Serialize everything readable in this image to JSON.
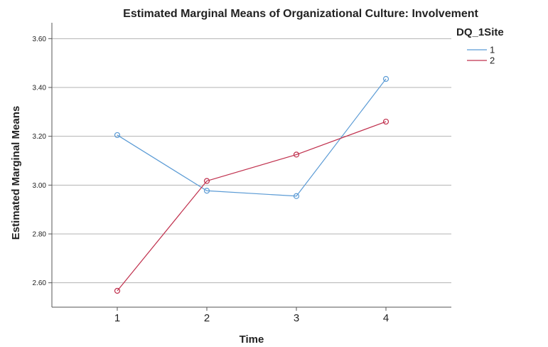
{
  "chart_data": {
    "type": "line",
    "title": "Estimated Marginal Means of Organizational Culture: Involvement",
    "xlabel": "Time",
    "ylabel": "Estimated Marginal Means",
    "categories": [
      "1",
      "2",
      "3",
      "4"
    ],
    "ylim": [
      2.5,
      3.665
    ],
    "yticks": [
      {
        "value": 2.6,
        "label": "2.60"
      },
      {
        "value": 2.8,
        "label": "2.80"
      },
      {
        "value": 3.0,
        "label": "3.00"
      },
      {
        "value": 3.2,
        "label": "3.20"
      },
      {
        "value": 3.4,
        "label": "3.40"
      },
      {
        "value": 3.6,
        "label": "3.60"
      }
    ],
    "grid": true,
    "legend": {
      "title": "DQ_1Site",
      "placement": "top-right"
    },
    "series": [
      {
        "name": "1",
        "color": "#5b9bd5",
        "values": [
          3.205,
          2.977,
          2.955,
          3.435
        ]
      },
      {
        "name": "2",
        "color": "#c0304d",
        "values": [
          2.567,
          3.017,
          3.125,
          3.26
        ]
      }
    ]
  }
}
